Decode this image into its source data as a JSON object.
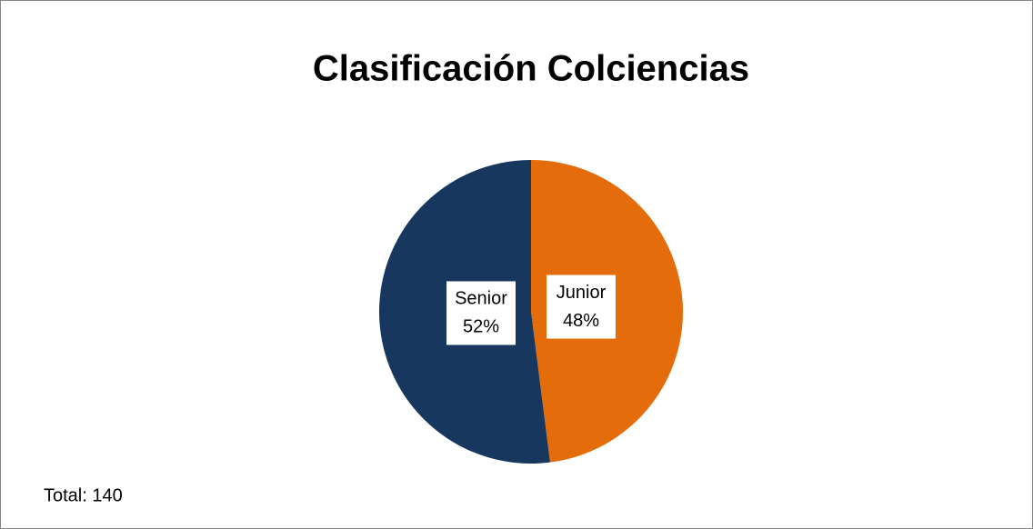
{
  "chart_data": {
    "type": "pie",
    "title": "Clasificación Colciencias",
    "categories": [
      "Junior",
      "Senior"
    ],
    "values": [
      48,
      52
    ],
    "value_labels": [
      "48%",
      "52%"
    ],
    "colors": [
      "#e46c0a",
      "#17375e"
    ],
    "annotation": "Total: 140"
  }
}
